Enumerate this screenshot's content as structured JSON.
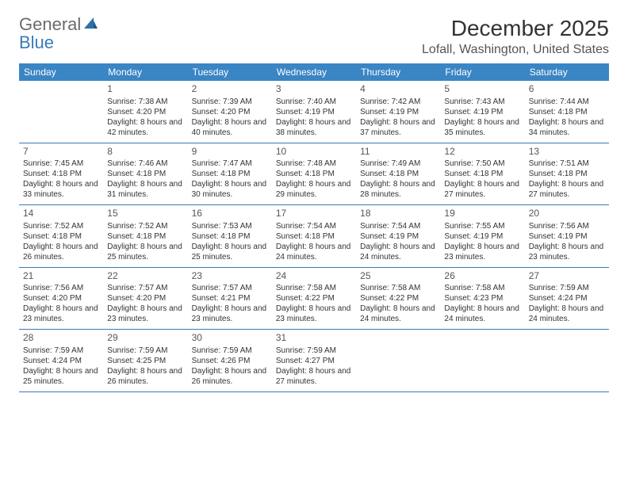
{
  "logo": {
    "word1": "General",
    "word2": "Blue"
  },
  "title": "December 2025",
  "location": "Lofall, Washington, United States",
  "colors": {
    "header_bg": "#3a85c4",
    "header_text": "#ffffff",
    "border": "#3a7ab8",
    "logo_gray": "#6b6b6b",
    "logo_blue": "#3a7ab8"
  },
  "dow": [
    "Sunday",
    "Monday",
    "Tuesday",
    "Wednesday",
    "Thursday",
    "Friday",
    "Saturday"
  ],
  "weeks": [
    [
      null,
      {
        "n": "1",
        "sr": "7:38 AM",
        "ss": "4:20 PM",
        "dl": "8 hours and 42 minutes."
      },
      {
        "n": "2",
        "sr": "7:39 AM",
        "ss": "4:20 PM",
        "dl": "8 hours and 40 minutes."
      },
      {
        "n": "3",
        "sr": "7:40 AM",
        "ss": "4:19 PM",
        "dl": "8 hours and 38 minutes."
      },
      {
        "n": "4",
        "sr": "7:42 AM",
        "ss": "4:19 PM",
        "dl": "8 hours and 37 minutes."
      },
      {
        "n": "5",
        "sr": "7:43 AM",
        "ss": "4:19 PM",
        "dl": "8 hours and 35 minutes."
      },
      {
        "n": "6",
        "sr": "7:44 AM",
        "ss": "4:18 PM",
        "dl": "8 hours and 34 minutes."
      }
    ],
    [
      {
        "n": "7",
        "sr": "7:45 AM",
        "ss": "4:18 PM",
        "dl": "8 hours and 33 minutes."
      },
      {
        "n": "8",
        "sr": "7:46 AM",
        "ss": "4:18 PM",
        "dl": "8 hours and 31 minutes."
      },
      {
        "n": "9",
        "sr": "7:47 AM",
        "ss": "4:18 PM",
        "dl": "8 hours and 30 minutes."
      },
      {
        "n": "10",
        "sr": "7:48 AM",
        "ss": "4:18 PM",
        "dl": "8 hours and 29 minutes."
      },
      {
        "n": "11",
        "sr": "7:49 AM",
        "ss": "4:18 PM",
        "dl": "8 hours and 28 minutes."
      },
      {
        "n": "12",
        "sr": "7:50 AM",
        "ss": "4:18 PM",
        "dl": "8 hours and 27 minutes."
      },
      {
        "n": "13",
        "sr": "7:51 AM",
        "ss": "4:18 PM",
        "dl": "8 hours and 27 minutes."
      }
    ],
    [
      {
        "n": "14",
        "sr": "7:52 AM",
        "ss": "4:18 PM",
        "dl": "8 hours and 26 minutes."
      },
      {
        "n": "15",
        "sr": "7:52 AM",
        "ss": "4:18 PM",
        "dl": "8 hours and 25 minutes."
      },
      {
        "n": "16",
        "sr": "7:53 AM",
        "ss": "4:18 PM",
        "dl": "8 hours and 25 minutes."
      },
      {
        "n": "17",
        "sr": "7:54 AM",
        "ss": "4:18 PM",
        "dl": "8 hours and 24 minutes."
      },
      {
        "n": "18",
        "sr": "7:54 AM",
        "ss": "4:19 PM",
        "dl": "8 hours and 24 minutes."
      },
      {
        "n": "19",
        "sr": "7:55 AM",
        "ss": "4:19 PM",
        "dl": "8 hours and 23 minutes."
      },
      {
        "n": "20",
        "sr": "7:56 AM",
        "ss": "4:19 PM",
        "dl": "8 hours and 23 minutes."
      }
    ],
    [
      {
        "n": "21",
        "sr": "7:56 AM",
        "ss": "4:20 PM",
        "dl": "8 hours and 23 minutes."
      },
      {
        "n": "22",
        "sr": "7:57 AM",
        "ss": "4:20 PM",
        "dl": "8 hours and 23 minutes."
      },
      {
        "n": "23",
        "sr": "7:57 AM",
        "ss": "4:21 PM",
        "dl": "8 hours and 23 minutes."
      },
      {
        "n": "24",
        "sr": "7:58 AM",
        "ss": "4:22 PM",
        "dl": "8 hours and 23 minutes."
      },
      {
        "n": "25",
        "sr": "7:58 AM",
        "ss": "4:22 PM",
        "dl": "8 hours and 24 minutes."
      },
      {
        "n": "26",
        "sr": "7:58 AM",
        "ss": "4:23 PM",
        "dl": "8 hours and 24 minutes."
      },
      {
        "n": "27",
        "sr": "7:59 AM",
        "ss": "4:24 PM",
        "dl": "8 hours and 24 minutes."
      }
    ],
    [
      {
        "n": "28",
        "sr": "7:59 AM",
        "ss": "4:24 PM",
        "dl": "8 hours and 25 minutes."
      },
      {
        "n": "29",
        "sr": "7:59 AM",
        "ss": "4:25 PM",
        "dl": "8 hours and 26 minutes."
      },
      {
        "n": "30",
        "sr": "7:59 AM",
        "ss": "4:26 PM",
        "dl": "8 hours and 26 minutes."
      },
      {
        "n": "31",
        "sr": "7:59 AM",
        "ss": "4:27 PM",
        "dl": "8 hours and 27 minutes."
      },
      null,
      null,
      null
    ]
  ],
  "labels": {
    "sunrise": "Sunrise:",
    "sunset": "Sunset:",
    "daylight": "Daylight:"
  }
}
